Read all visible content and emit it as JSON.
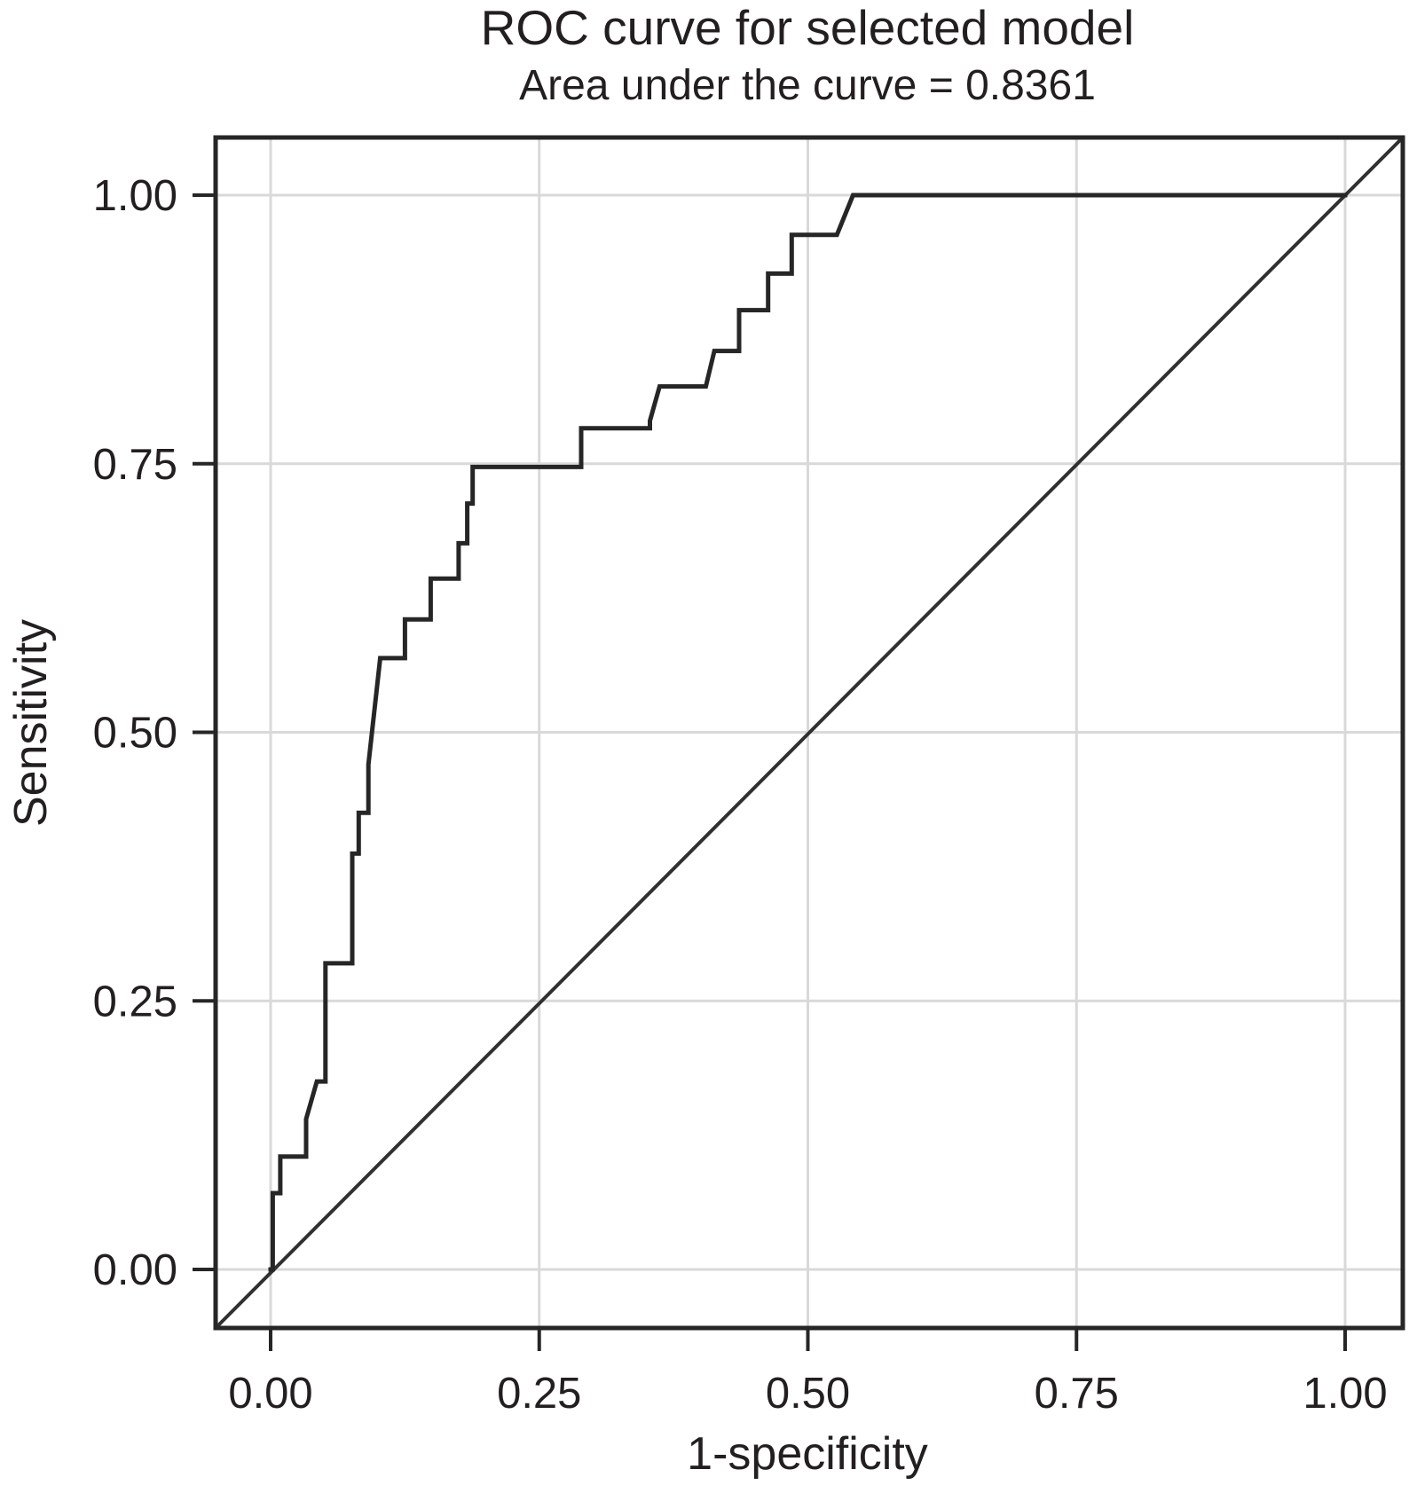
{
  "figure": {
    "title": "ROC curve for selected model",
    "subtitle": "Area under the curve = 0.8361"
  },
  "chart_data": {
    "type": "line",
    "subtype": "roc_step_curve",
    "title": "ROC curve for selected model",
    "subtitle": "Area under the curve = 0.8361",
    "auc": 0.8361,
    "xlabel": "1-specificity",
    "ylabel": "Sensitivity",
    "xlim": [
      0,
      1
    ],
    "ylim": [
      0,
      1
    ],
    "grid": true,
    "legend": "none",
    "x_ticks": {
      "values": [
        0,
        0.25,
        0.5,
        0.75,
        1
      ],
      "labels": [
        "0.00",
        "0.25",
        "0.50",
        "0.75",
        "1.00"
      ]
    },
    "y_ticks": {
      "values": [
        0,
        0.25,
        0.5,
        0.75,
        1
      ],
      "labels": [
        "0.00",
        "0.25",
        "0.50",
        "0.75",
        "1.00"
      ]
    },
    "reference_line": "chance diagonal y = x across full panel",
    "series": [
      {
        "name": "ROC curve",
        "points": [
          [
            0.0,
            0.0
          ],
          [
            0.002,
            0.0
          ],
          [
            0.002,
            0.071
          ],
          [
            0.009,
            0.071
          ],
          [
            0.009,
            0.105
          ],
          [
            0.033,
            0.105
          ],
          [
            0.033,
            0.14
          ],
          [
            0.043,
            0.175
          ],
          [
            0.051,
            0.175
          ],
          [
            0.051,
            0.285
          ],
          [
            0.076,
            0.285
          ],
          [
            0.076,
            0.387
          ],
          [
            0.082,
            0.387
          ],
          [
            0.082,
            0.425
          ],
          [
            0.091,
            0.425
          ],
          [
            0.091,
            0.47
          ],
          [
            0.102,
            0.569
          ],
          [
            0.125,
            0.569
          ],
          [
            0.125,
            0.605
          ],
          [
            0.149,
            0.605
          ],
          [
            0.149,
            0.643
          ],
          [
            0.175,
            0.643
          ],
          [
            0.175,
            0.676
          ],
          [
            0.183,
            0.676
          ],
          [
            0.183,
            0.713
          ],
          [
            0.188,
            0.713
          ],
          [
            0.188,
            0.747
          ],
          [
            0.289,
            0.747
          ],
          [
            0.289,
            0.783
          ],
          [
            0.353,
            0.783
          ],
          [
            0.353,
            0.79
          ],
          [
            0.362,
            0.822
          ],
          [
            0.405,
            0.822
          ],
          [
            0.413,
            0.855
          ],
          [
            0.436,
            0.855
          ],
          [
            0.436,
            0.893
          ],
          [
            0.463,
            0.893
          ],
          [
            0.463,
            0.927
          ],
          [
            0.485,
            0.927
          ],
          [
            0.485,
            0.963
          ],
          [
            0.527,
            0.963
          ],
          [
            0.542,
            1.0
          ],
          [
            1.0,
            1.0
          ]
        ]
      },
      {
        "name": "chance diagonal",
        "points": "panel corner to panel corner (y = x)"
      }
    ],
    "colors": {
      "curve": "#262626",
      "diagonal": "#303030",
      "grid": "#d9d9d9",
      "border": "#262626",
      "text": "#231f20",
      "background": "#ffffff"
    }
  }
}
